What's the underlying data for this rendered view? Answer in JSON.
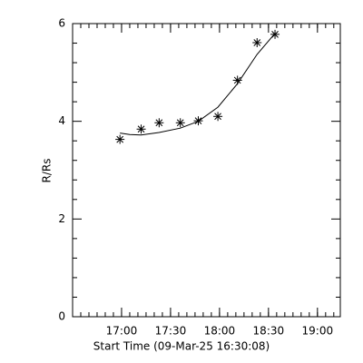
{
  "chart_data": {
    "type": "scatter",
    "xlabel": "Start Time (09-Mar-25 16:30:08)",
    "ylabel": "R/Rs",
    "xlim": [
      990,
      1154
    ],
    "xticks": [
      {
        "value": 1020,
        "label": "17:00"
      },
      {
        "value": 1050,
        "label": "17:30"
      },
      {
        "value": 1080,
        "label": "18:00"
      },
      {
        "value": 1110,
        "label": "18:30"
      },
      {
        "value": 1140,
        "label": "19:00"
      }
    ],
    "ylim": [
      0,
      6
    ],
    "yticks": [
      0,
      2,
      4,
      6
    ],
    "series": [
      {
        "kind": "points",
        "color": "#000000",
        "x": [
          1019,
          1032,
          1043,
          1056,
          1067,
          1079,
          1091,
          1103,
          1114
        ],
        "values": [
          3.63,
          3.84,
          3.97,
          3.97,
          4.01,
          4.1,
          4.84,
          5.61,
          5.78
        ]
      },
      {
        "kind": "line",
        "color": "#000000",
        "x": [
          1019,
          1025,
          1032,
          1043,
          1056,
          1067,
          1079,
          1091,
          1103,
          1114
        ],
        "values": [
          3.76,
          3.73,
          3.72,
          3.77,
          3.86,
          4.0,
          4.29,
          4.77,
          5.37,
          5.8
        ]
      }
    ]
  }
}
